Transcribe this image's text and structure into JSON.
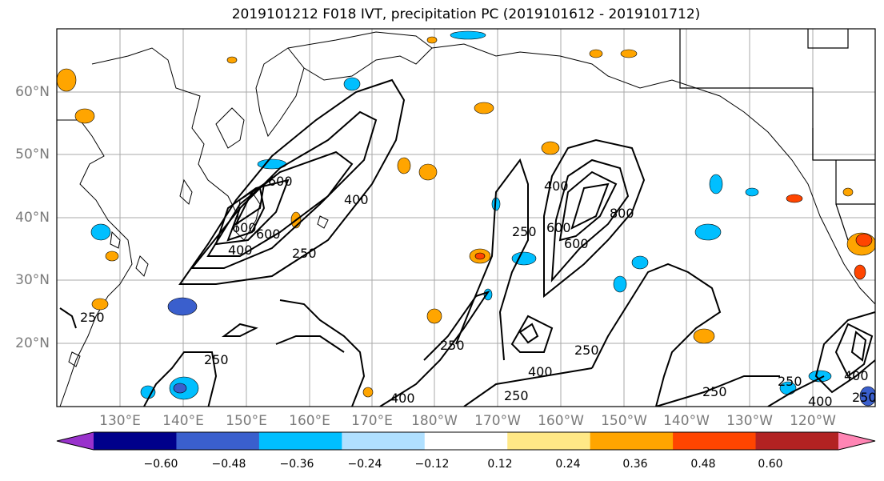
{
  "title": "2019101212 F018 IVT, precipitation PC (2019101612 - 2019101712)",
  "lat_labels": [
    "60°N",
    "50°N",
    "40°N",
    "30°N",
    "20°N"
  ],
  "lon_labels": [
    "130°E",
    "140°E",
    "150°E",
    "160°E",
    "170°E",
    "180°W",
    "170°W",
    "160°W",
    "150°W",
    "140°W",
    "130°W",
    "120°W"
  ],
  "ivt_contour_labels": [
    "600",
    "400",
    "250",
    "250",
    "250",
    "400",
    "600",
    "400",
    "250",
    "400",
    "600",
    "800",
    "400",
    "250",
    "250",
    "400",
    "600",
    "250",
    "250",
    "400",
    "600",
    "250",
    "250"
  ],
  "colorbar": {
    "ticks": [
      "−0.60",
      "−0.48",
      "−0.36",
      "−0.24",
      "−0.12",
      "0.12",
      "0.24",
      "0.36",
      "0.48",
      "0.60"
    ],
    "colors": [
      "#9932cc",
      "#00008b",
      "#3a5fcd",
      "#00bfff",
      "#b0e0ff",
      "#ffffff",
      "#ffe886",
      "#ffa500",
      "#ff4500",
      "#b22222",
      "#ff85b4"
    ]
  }
}
